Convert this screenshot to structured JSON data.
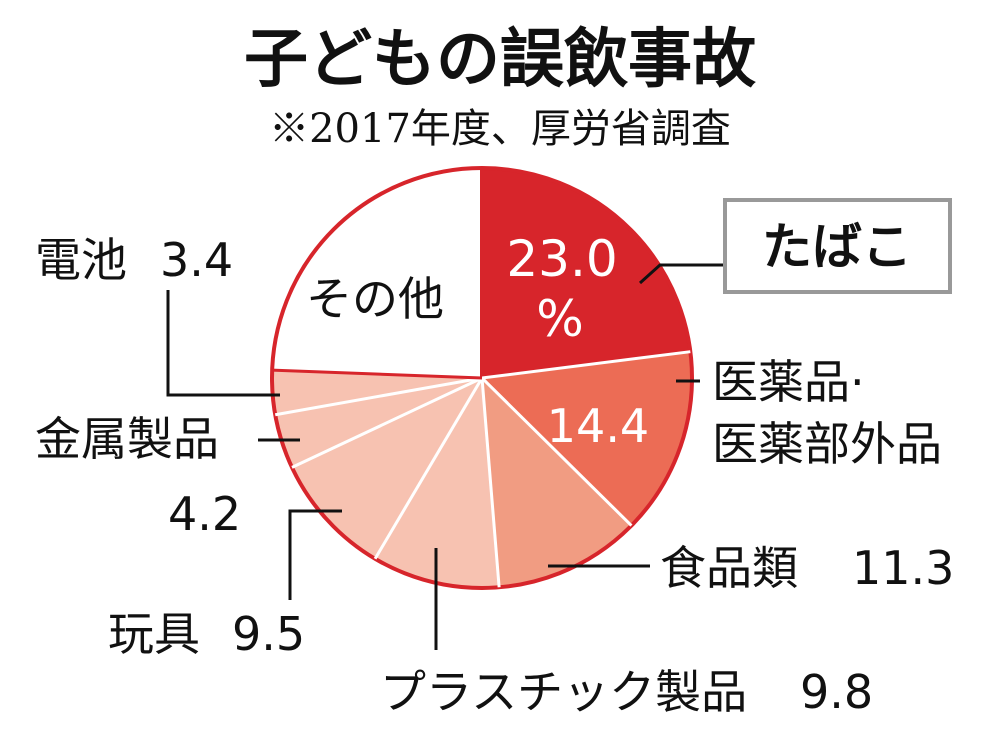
{
  "title": "子どもの誤飲事故",
  "subtitle": "※2017年度、厚労省調査",
  "chart_data": {
    "type": "pie",
    "title": "子どもの誤飲事故",
    "subtitle": "※2017年度、厚労省調査",
    "unit": "%",
    "slices": [
      {
        "label": "たばこ",
        "value": 23.0,
        "value_text": "23.0",
        "color": "#d7252b"
      },
      {
        "label": "医薬品・医薬部外品",
        "label_line1": "医薬品·",
        "label_line2": "医薬部外品",
        "value": 14.4,
        "value_text": "14.4",
        "color": "#ec6c55"
      },
      {
        "label": "食品類",
        "value": 11.3,
        "value_text": "11.3",
        "color": "#f19c82"
      },
      {
        "label": "プラスチック製品",
        "value": 9.8,
        "value_text": "9.8",
        "color": "#f7c2b1"
      },
      {
        "label": "玩具",
        "value": 9.5,
        "value_text": "9.5",
        "color": "#f7c2b1"
      },
      {
        "label": "金属製品",
        "value": 4.2,
        "value_text": "4.2",
        "color": "#f7c2b1"
      },
      {
        "label": "電池",
        "value": 3.4,
        "value_text": "3.4",
        "color": "#f7c2b1"
      },
      {
        "label": "その他",
        "value": 24.4,
        "color": "#ffffff"
      }
    ],
    "colors": {
      "outline": "#d7252b",
      "divider": "#ffffff",
      "text": "#111111"
    }
  }
}
